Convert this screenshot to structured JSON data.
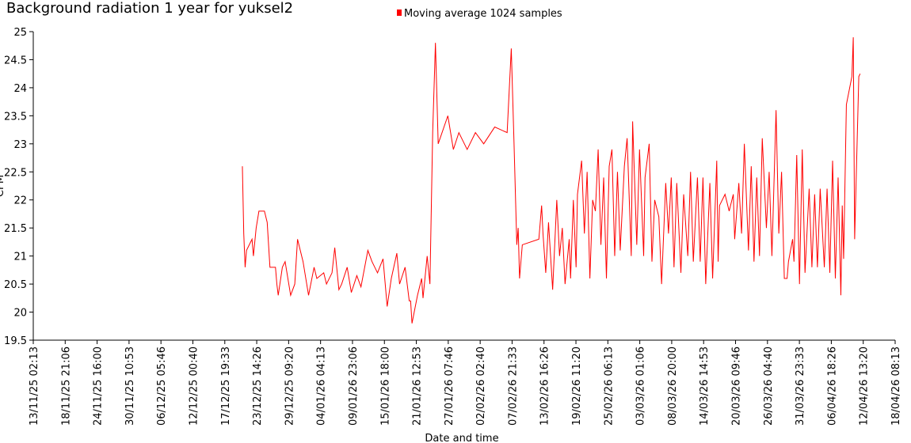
{
  "chart_data": {
    "type": "line",
    "title": "Background radiation 1 year for yuksel2",
    "xlabel": "Date and time",
    "ylabel": "CPM",
    "xlim": [
      "13/11/25 02:13",
      "18/04/26 08:13"
    ],
    "xticks": [
      "13/11/25 02:13",
      "18/11/25 21:06",
      "24/11/25 16:00",
      "30/11/25 10:53",
      "06/12/25 05:46",
      "12/12/25 00:40",
      "17/12/25 19:33",
      "23/12/25 14:26",
      "29/12/25 09:20",
      "04/01/26 04:13",
      "09/01/26 23:06",
      "15/01/26 18:00",
      "21/01/26 12:53",
      "27/01/26 07:46",
      "02/02/26 02:40",
      "07/02/26 21:33",
      "13/02/26 16:26",
      "19/02/26 11:20",
      "25/02/26 06:13",
      "03/03/26 01:06",
      "08/03/26 20:00",
      "14/03/26 14:53",
      "20/03/26 09:46",
      "26/03/26 04:40",
      "31/03/26 23:33",
      "06/04/26 18:26",
      "12/04/26 13:20",
      "18/04/26 08:13"
    ],
    "ylim": [
      19.5,
      25
    ],
    "yticks": [
      19.5,
      20,
      20.5,
      21,
      21.5,
      22,
      22.5,
      23,
      23.5,
      24,
      24.5,
      25
    ],
    "grid": false,
    "x": [
      "21/12/25 00:00",
      "21/12/25 06:00",
      "21/12/25 12:00",
      "21/12/25 18:00",
      "22/12/25 18:00",
      "23/12/25 00:00",
      "23/12/25 12:00",
      "24/12/25 00:00",
      "25/12/25 00:00",
      "25/12/25 12:00",
      "26/12/25 00:00",
      "27/12/25 00:00",
      "27/12/25 06:00",
      "27/12/25 12:00",
      "28/12/25 06:00",
      "28/12/25 18:00",
      "29/12/25 18:00",
      "30/12/25 12:00",
      "31/12/25 00:00",
      "01/01/26 00:00",
      "02/01/26 00:00",
      "03/01/26 00:00",
      "03/01/26 12:00",
      "04/01/26 18:00",
      "05/01/26 06:00",
      "06/01/26 06:00",
      "06/01/26 18:00",
      "07/01/26 12:00",
      "08/01/26 00:00",
      "09/01/26 00:00",
      "09/01/26 18:00",
      "10/01/26 18:00",
      "11/01/26 12:00",
      "12/01/26 18:00",
      "13/01/26 12:00",
      "14/01/26 12:00",
      "15/01/26 12:00",
      "16/01/26 06:00",
      "17/01/26 00:00",
      "18/01/26 00:00",
      "18/01/26 12:00",
      "19/01/26 12:00",
      "20/01/26 06:00",
      "20/01/26 12:00",
      "20/01/26 18:00",
      "21/01/26 18:00",
      "22/01/26 12:00",
      "22/01/26 18:00",
      "23/01/26 12:00",
      "24/01/26 00:00",
      "24/01/26 12:00",
      "25/01/26 00:00",
      "25/01/26 12:00",
      "27/01/26 06:00",
      "28/01/26 06:00",
      "29/01/26 06:00",
      "30/01/26 18:00",
      "01/02/26 06:00",
      "02/02/26 18:00",
      "04/02/26 18:00",
      "07/02/26 00:00",
      "07/02/26 18:00",
      "08/02/26 06:00",
      "08/02/26 18:00",
      "09/02/26 00:00",
      "09/02/26 06:00",
      "09/02/26 18:00",
      "12/02/26 18:00",
      "13/02/26 06:00",
      "13/02/26 12:00",
      "14/02/26 00:00",
      "14/02/26 12:00",
      "15/02/26 06:00",
      "16/02/26 00:00",
      "16/02/26 12:00",
      "17/02/26 00:00",
      "17/02/26 12:00",
      "18/02/26 06:00",
      "18/02/26 12:00",
      "19/02/26 00:00",
      "19/02/26 12:00",
      "19/02/26 18:00",
      "20/02/26 12:00",
      "21/02/26 00:00",
      "21/02/26 12:00",
      "22/02/26 00:00",
      "22/02/26 12:00",
      "23/02/26 00:00",
      "23/02/26 12:00",
      "24/02/26 00:00",
      "24/02/26 12:00",
      "25/02/26 00:00",
      "25/02/26 12:00",
      "26/02/26 00:00",
      "26/02/26 12:00",
      "27/02/26 00:00",
      "27/02/26 12:00",
      "28/02/26 06:00",
      "28/02/26 18:00",
      "01/03/26 12:00",
      "01/03/26 18:00",
      "02/03/26 12:00",
      "03/03/26 00:00",
      "03/03/26 18:00",
      "04/03/26 00:00",
      "04/03/26 18:00",
      "05/03/26 06:00",
      "05/03/26 18:00",
      "06/03/26 12:00",
      "07/03/26 00:00",
      "07/03/26 18:00",
      "08/03/26 06:00",
      "08/03/26 18:00",
      "09/03/26 06:00",
      "09/03/26 18:00",
      "10/03/26 12:00",
      "11/03/26 00:00",
      "11/03/26 18:00",
      "12/03/26 06:00",
      "12/03/26 18:00",
      "13/03/26 12:00",
      "14/03/26 00:00",
      "14/03/26 12:00",
      "15/03/26 00:00",
      "15/03/26 18:00",
      "16/03/26 06:00",
      "17/03/26 00:00",
      "17/03/26 06:00",
      "17/03/26 12:00",
      "18/03/26 12:00",
      "19/03/26 06:00",
      "20/03/26 00:00",
      "20/03/26 06:00",
      "21/03/26 00:00",
      "21/03/26 12:00",
      "22/03/26 00:00",
      "22/03/26 18:00",
      "23/03/26 06:00",
      "23/03/26 18:00",
      "24/03/26 06:00",
      "24/03/26 18:00",
      "25/03/26 06:00",
      "26/03/26 00:00",
      "26/03/26 12:00",
      "27/03/26 00:00",
      "27/03/26 18:00",
      "28/03/26 06:00",
      "28/03/26 18:00",
      "29/03/26 06:00",
      "29/03/26 18:00",
      "30/03/26 00:00",
      "30/03/26 18:00",
      "31/03/26 00:00",
      "31/03/26 12:00",
      "01/04/26 00:00",
      "01/04/26 12:00",
      "02/04/26 00:00",
      "02/04/26 18:00",
      "03/04/26 06:00",
      "03/04/26 18:00",
      "04/04/26 06:00",
      "04/04/26 18:00",
      "05/04/26 12:00",
      "06/04/26 00:00",
      "06/04/26 12:00",
      "07/04/26 00:00",
      "07/04/26 12:00",
      "08/04/26 00:00",
      "08/04/26 12:00",
      "08/04/26 18:00",
      "09/04/26 00:00",
      "09/04/26 12:00",
      "10/04/26 12:00",
      "10/04/26 18:00",
      "11/04/26 00:00",
      "11/04/26 18:00",
      "12/04/26 00:00"
    ],
    "series": [
      {
        "name": "Moving average 1024 samples",
        "color": "#ff0000",
        "values": [
          22.6,
          21.4,
          20.8,
          21.1,
          21.3,
          21.0,
          21.5,
          21.8,
          21.8,
          21.6,
          20.8,
          20.8,
          20.5,
          20.3,
          20.8,
          20.9,
          20.3,
          20.5,
          21.3,
          20.9,
          20.3,
          20.8,
          20.6,
          20.7,
          20.5,
          20.7,
          21.15,
          20.4,
          20.5,
          20.8,
          20.35,
          20.65,
          20.45,
          21.1,
          20.9,
          20.7,
          20.95,
          20.1,
          20.6,
          21.05,
          20.5,
          20.8,
          20.2,
          20.2,
          19.8,
          20.3,
          20.6,
          20.25,
          21.0,
          20.5,
          23.2,
          24.8,
          23.0,
          23.5,
          22.9,
          23.2,
          22.9,
          23.2,
          23.0,
          23.3,
          23.2,
          24.7,
          23.0,
          21.2,
          21.5,
          20.6,
          21.2,
          21.3,
          21.9,
          21.4,
          20.7,
          21.6,
          20.4,
          22.0,
          21.0,
          21.5,
          20.5,
          21.3,
          20.6,
          22.0,
          20.8,
          22.1,
          22.7,
          21.4,
          22.5,
          20.6,
          22.0,
          21.8,
          22.9,
          21.2,
          22.4,
          20.6,
          22.6,
          22.9,
          21.0,
          22.5,
          21.1,
          22.6,
          23.1,
          21.0,
          23.4,
          21.2,
          22.9,
          21.0,
          22.4,
          23.0,
          20.9,
          22.0,
          21.7,
          20.5,
          22.3,
          21.4,
          22.4,
          20.8,
          22.3,
          20.7,
          22.1,
          21.0,
          22.5,
          20.9,
          22.4,
          20.9,
          22.4,
          20.5,
          22.3,
          20.6,
          22.7,
          20.9,
          21.9,
          22.1,
          21.8,
          22.1,
          21.3,
          22.3,
          21.4,
          23.0,
          21.1,
          22.6,
          20.9,
          22.4,
          21.0,
          23.1,
          21.5,
          22.5,
          21.0,
          23.6,
          21.4,
          22.5,
          20.6,
          20.6,
          20.9,
          21.3,
          20.9,
          22.8,
          20.5,
          22.9,
          20.7,
          22.2,
          20.8,
          22.1,
          20.8,
          22.2,
          20.8,
          22.2,
          20.7,
          22.7,
          20.6,
          22.4,
          20.3,
          21.9,
          20.95,
          23.7,
          24.2,
          24.9,
          21.3,
          24.2,
          24.25
        ]
      }
    ]
  }
}
